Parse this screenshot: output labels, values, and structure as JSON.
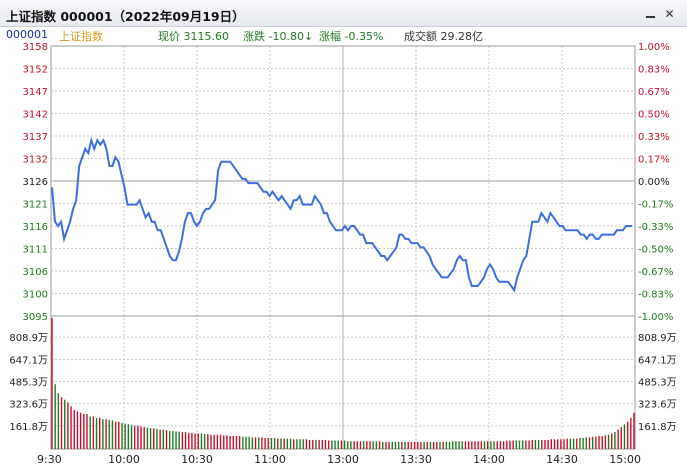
{
  "window": {
    "title": "上证指数  000001（2022年09月19日）",
    "min_icon": "minimize-icon",
    "close_icon": "close-icon"
  },
  "info": {
    "code": "000001",
    "name": "上证指数",
    "price_label": "现价 3115.60",
    "change_label": "涨跌 -10.80↓",
    "pct_label": "涨幅 -0.35%",
    "volume_label": "成交额 29.28亿"
  },
  "colors": {
    "up": "#c8102e",
    "down": "#1f7a1f",
    "line": "#3a6fe0",
    "grid": "#c9c9c9"
  },
  "chart_data": {
    "type": "line",
    "prev_close": 3126,
    "y_left_ticks": [
      "3158",
      "3152",
      "3147",
      "3142",
      "3137",
      "3132",
      "3126",
      "3121",
      "3116",
      "3111",
      "3106",
      "3100",
      "3095"
    ],
    "y_right_ticks": [
      "1.00%",
      "0.83%",
      "0.67%",
      "0.50%",
      "0.33%",
      "0.17%",
      "0.00%",
      "-0.17%",
      "-0.33%",
      "-0.50%",
      "-0.67%",
      "-0.83%",
      "-1.00%"
    ],
    "ylim": [
      3095,
      3158
    ],
    "x_ticks": [
      "9:30",
      "10:00",
      "10:30",
      "11:00",
      "13:00",
      "13:30",
      "14:00",
      "14:30",
      "15:00"
    ],
    "volume_ticks": [
      "808.9万",
      "647.1万",
      "485.3万",
      "323.6万",
      "161.8万"
    ],
    "volume_max": 1011,
    "price": [
      3125,
      3117,
      3116,
      3117,
      3113,
      3115,
      3117,
      3120,
      3122,
      3130,
      3132,
      3134,
      3133,
      3136,
      3134,
      3136,
      3135,
      3136,
      3134,
      3130,
      3130,
      3132,
      3131,
      3128,
      3125,
      3121,
      3121,
      3121,
      3121,
      3122,
      3120,
      3118,
      3119,
      3117,
      3117,
      3115,
      3115,
      3113,
      3111,
      3109,
      3108,
      3108,
      3110,
      3113,
      3117,
      3119,
      3119,
      3117,
      3116,
      3117,
      3119,
      3120,
      3120,
      3121,
      3122,
      3129,
      3131,
      3131,
      3131,
      3131,
      3130,
      3129,
      3128,
      3127,
      3127,
      3126,
      3126,
      3126,
      3126,
      3125,
      3124,
      3124,
      3123,
      3124,
      3123,
      3122,
      3123,
      3122,
      3121,
      3120,
      3122,
      3122,
      3123,
      3121,
      3121,
      3121,
      3121,
      3123,
      3122,
      3121,
      3119,
      3119,
      3117,
      3116,
      3115,
      3115,
      3115,
      3116,
      3115,
      3116,
      3116,
      3115,
      3114,
      3114,
      3112,
      3112,
      3112,
      3111,
      3110,
      3109,
      3109,
      3108,
      3109,
      3110,
      3111,
      3114,
      3114,
      3113,
      3113,
      3112,
      3112,
      3112,
      3111,
      3111,
      3110,
      3109,
      3107,
      3106,
      3105,
      3104,
      3104,
      3104,
      3105,
      3106,
      3108,
      3109,
      3108,
      3108,
      3104,
      3102,
      3102,
      3102,
      3103,
      3104,
      3106,
      3107,
      3106,
      3104,
      3103,
      3103,
      3103,
      3103,
      3102,
      3101,
      3104,
      3106,
      3108,
      3109,
      3113,
      3117,
      3117,
      3117,
      3119,
      3118,
      3117,
      3119,
      3118,
      3117,
      3116,
      3116,
      3115,
      3115,
      3115,
      3115,
      3115,
      3114,
      3114,
      3113,
      3114,
      3114,
      3113,
      3113,
      3114,
      3114,
      3114,
      3114,
      3114,
      3115,
      3115,
      3115,
      3116,
      3116,
      3116
    ],
    "volume": [
      1011,
      500,
      430,
      400,
      380,
      360,
      330,
      300,
      290,
      280,
      270,
      270,
      250,
      250,
      240,
      240,
      230,
      230,
      225,
      220,
      210,
      210,
      200,
      195,
      190,
      185,
      180,
      180,
      175,
      170,
      165,
      160,
      160,
      155,
      150,
      150,
      145,
      140,
      140,
      135,
      135,
      130,
      130,
      125,
      125,
      120,
      120,
      120,
      115,
      115,
      110,
      110,
      110,
      110,
      105,
      105,
      100,
      100,
      100,
      100,
      95,
      95,
      95,
      90,
      90,
      90,
      90,
      85,
      85,
      85,
      85,
      80,
      80,
      80,
      80,
      80,
      75,
      75,
      75,
      75,
      75,
      70,
      70,
      70,
      70,
      70,
      70,
      65,
      65,
      65,
      65,
      65,
      65,
      60,
      60,
      60,
      60,
      60,
      60,
      60,
      60,
      60,
      60,
      60,
      55,
      55,
      55,
      55,
      55,
      55,
      55,
      55,
      55,
      55,
      55,
      55,
      55,
      55,
      55,
      55,
      55,
      55,
      55,
      55,
      55,
      55,
      60,
      60,
      60,
      60,
      60,
      60,
      60,
      60,
      60,
      60,
      60,
      60,
      60,
      60,
      60,
      60,
      60,
      65,
      65,
      65,
      65,
      65,
      65,
      65,
      65,
      70,
      70,
      70,
      70,
      70,
      70,
      75,
      75,
      75,
      75,
      75,
      80,
      80,
      80,
      80,
      85,
      85,
      90,
      90,
      95,
      95,
      100,
      100,
      105,
      110,
      120,
      130,
      150,
      170,
      190,
      210,
      240,
      280
    ]
  }
}
